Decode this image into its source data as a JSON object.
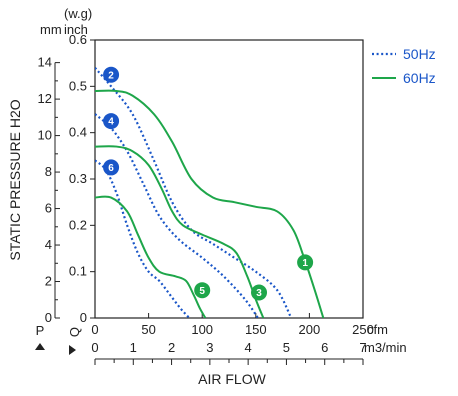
{
  "chart_data": {
    "type": "line",
    "title": "",
    "xlabel": "AIR FLOW",
    "ylabel": "STATIC PRESSURE H2O",
    "x_axis_primary": {
      "unit": "cfm",
      "range": [
        0,
        250
      ],
      "ticks": [
        0,
        50,
        100,
        150,
        200,
        250
      ]
    },
    "x_axis_secondary": {
      "unit": "m3/min",
      "range": [
        0,
        7
      ],
      "ticks": [
        0,
        1,
        2,
        3,
        4,
        5,
        6,
        7
      ]
    },
    "y_axis_primary": {
      "unit_line1": "(w.g)",
      "unit_line2": "inch",
      "range": [
        0,
        0.6
      ],
      "ticks": [
        0,
        0.1,
        0.2,
        0.3,
        0.4,
        0.5,
        0.6
      ]
    },
    "y_axis_secondary": {
      "unit": "mm",
      "range": [
        0,
        15.24
      ],
      "ticks": [
        0,
        2,
        4,
        6,
        8,
        10,
        12,
        14
      ]
    },
    "q_label": "Q",
    "p_label": "P",
    "legend": [
      {
        "label": "50Hz",
        "style": "dotted",
        "color": "#1a56c8"
      },
      {
        "label": "60Hz",
        "style": "solid",
        "color": "#1ea64a"
      }
    ],
    "grid": false,
    "series": [
      {
        "id": "2",
        "hz": "50Hz",
        "points": [
          [
            0,
            0.54
          ],
          [
            15,
            0.5
          ],
          [
            35,
            0.44
          ],
          [
            55,
            0.34
          ],
          [
            72,
            0.25
          ],
          [
            90,
            0.19
          ],
          [
            110,
            0.16
          ],
          [
            130,
            0.13
          ],
          [
            150,
            0.1
          ],
          [
            170,
            0.06
          ],
          [
            183,
            0
          ]
        ]
      },
      {
        "id": "4",
        "hz": "50Hz",
        "points": [
          [
            0,
            0.44
          ],
          [
            15,
            0.41
          ],
          [
            30,
            0.36
          ],
          [
            45,
            0.29
          ],
          [
            60,
            0.22
          ],
          [
            78,
            0.17
          ],
          [
            100,
            0.13
          ],
          [
            120,
            0.09
          ],
          [
            140,
            0.04
          ],
          [
            152,
            0
          ]
        ]
      },
      {
        "id": "6",
        "hz": "50Hz",
        "points": [
          [
            0,
            0.34
          ],
          [
            10,
            0.32
          ],
          [
            20,
            0.27
          ],
          [
            30,
            0.2
          ],
          [
            40,
            0.14
          ],
          [
            50,
            0.1
          ],
          [
            60,
            0.08
          ],
          [
            70,
            0.05
          ],
          [
            80,
            0.02
          ],
          [
            88,
            0
          ]
        ]
      },
      {
        "id": "1",
        "hz": "60Hz",
        "points": [
          [
            0,
            0.49
          ],
          [
            20,
            0.49
          ],
          [
            35,
            0.48
          ],
          [
            55,
            0.44
          ],
          [
            72,
            0.38
          ],
          [
            90,
            0.3
          ],
          [
            110,
            0.26
          ],
          [
            130,
            0.25
          ],
          [
            150,
            0.24
          ],
          [
            170,
            0.23
          ],
          [
            185,
            0.19
          ],
          [
            195,
            0.13
          ],
          [
            205,
            0.06
          ],
          [
            213,
            0
          ]
        ]
      },
      {
        "id": "3",
        "hz": "60Hz",
        "points": [
          [
            0,
            0.37
          ],
          [
            20,
            0.37
          ],
          [
            35,
            0.36
          ],
          [
            50,
            0.33
          ],
          [
            62,
            0.28
          ],
          [
            72,
            0.23
          ],
          [
            82,
            0.2
          ],
          [
            100,
            0.18
          ],
          [
            120,
            0.16
          ],
          [
            132,
            0.14
          ],
          [
            142,
            0.09
          ],
          [
            150,
            0.04
          ],
          [
            157,
            0
          ]
        ]
      },
      {
        "id": "5",
        "hz": "60Hz",
        "points": [
          [
            0,
            0.26
          ],
          [
            15,
            0.26
          ],
          [
            30,
            0.23
          ],
          [
            40,
            0.18
          ],
          [
            50,
            0.13
          ],
          [
            60,
            0.1
          ],
          [
            75,
            0.09
          ],
          [
            85,
            0.08
          ],
          [
            92,
            0.05
          ],
          [
            98,
            0.02
          ],
          [
            103,
            0
          ]
        ]
      }
    ],
    "badges": [
      {
        "id": "2",
        "hz": "50Hz",
        "x": 15,
        "y": 0.525
      },
      {
        "id": "4",
        "hz": "50Hz",
        "x": 15,
        "y": 0.425
      },
      {
        "id": "6",
        "hz": "50Hz",
        "x": 15,
        "y": 0.325
      },
      {
        "id": "1",
        "hz": "60Hz",
        "x": 196,
        "y": 0.12
      },
      {
        "id": "3",
        "hz": "60Hz",
        "x": 153,
        "y": 0.055
      },
      {
        "id": "5",
        "hz": "60Hz",
        "x": 100,
        "y": 0.06
      }
    ],
    "colors": {
      "50Hz": "#1a56c8",
      "60Hz": "#1ea64a",
      "axis": "#222222"
    }
  }
}
